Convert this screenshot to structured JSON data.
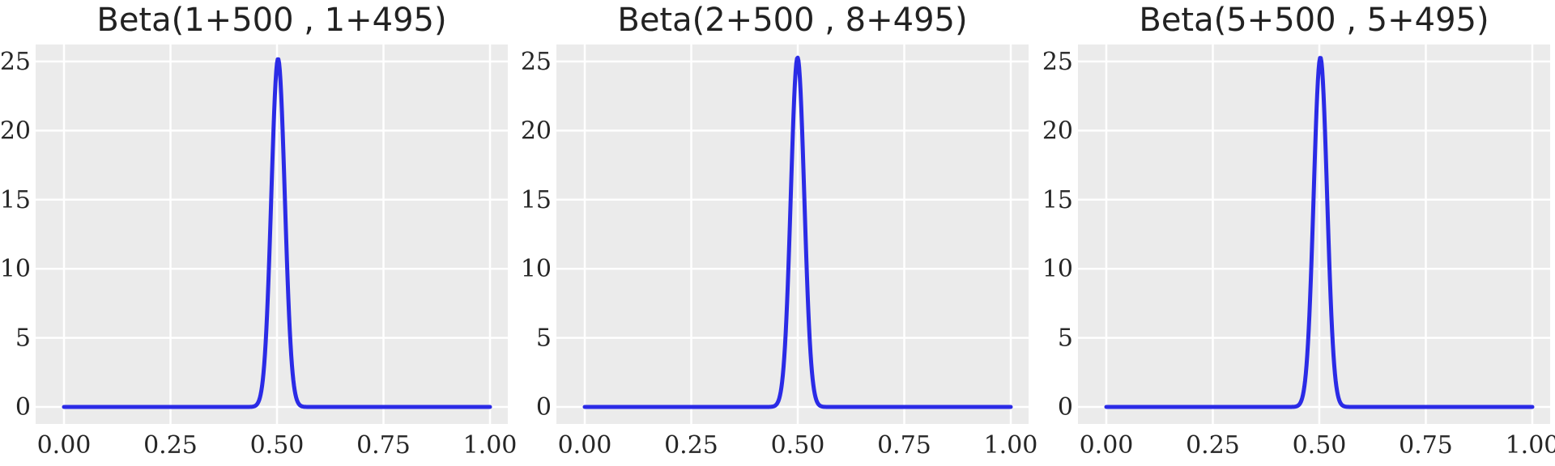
{
  "chart_data": [
    {
      "type": "line",
      "title": "Beta(1+500 , 1+495)",
      "alpha": 501,
      "beta": 496,
      "xlim": [
        0,
        1
      ],
      "ylim": [
        0,
        25
      ],
      "xticks": [
        0,
        0.25,
        0.5,
        0.75,
        1
      ],
      "xtick_labels": [
        "0.00",
        "0.25",
        "0.50",
        "0.75",
        "1.00"
      ],
      "yticks": [
        0,
        5,
        10,
        15,
        20,
        25
      ],
      "ytick_labels": [
        "0",
        "5",
        "10",
        "15",
        "20",
        "25"
      ],
      "grid": true,
      "series_color": "#2b2be6",
      "peak": {
        "x": 0.5025,
        "y": 25.2
      }
    },
    {
      "type": "line",
      "title": "Beta(2+500 , 8+495)",
      "alpha": 502,
      "beta": 503,
      "xlim": [
        0,
        1
      ],
      "ylim": [
        0,
        25
      ],
      "xticks": [
        0,
        0.25,
        0.5,
        0.75,
        1
      ],
      "xtick_labels": [
        "0.00",
        "0.25",
        "0.50",
        "0.75",
        "1.00"
      ],
      "yticks": [
        0,
        5,
        10,
        15,
        20,
        25
      ],
      "ytick_labels": [
        "0",
        "5",
        "10",
        "15",
        "20",
        "25"
      ],
      "grid": true,
      "series_color": "#2b2be6",
      "peak": {
        "x": 0.4995,
        "y": 25.2
      }
    },
    {
      "type": "line",
      "title": "Beta(5+500 , 5+495)",
      "alpha": 505,
      "beta": 500,
      "xlim": [
        0,
        1
      ],
      "ylim": [
        0,
        25
      ],
      "xticks": [
        0,
        0.25,
        0.5,
        0.75,
        1
      ],
      "xtick_labels": [
        "0.00",
        "0.25",
        "0.50",
        "0.75",
        "1.00"
      ],
      "yticks": [
        0,
        5,
        10,
        15,
        20,
        25
      ],
      "ytick_labels": [
        "0",
        "5",
        "10",
        "15",
        "20",
        "25"
      ],
      "grid": true,
      "series_color": "#2b2be6",
      "peak": {
        "x": 0.5025,
        "y": 25.2
      }
    }
  ],
  "colors": {
    "panel_background": "#ebebeb",
    "grid": "#ffffff",
    "line": "#2b2be6",
    "text": "#222222"
  }
}
